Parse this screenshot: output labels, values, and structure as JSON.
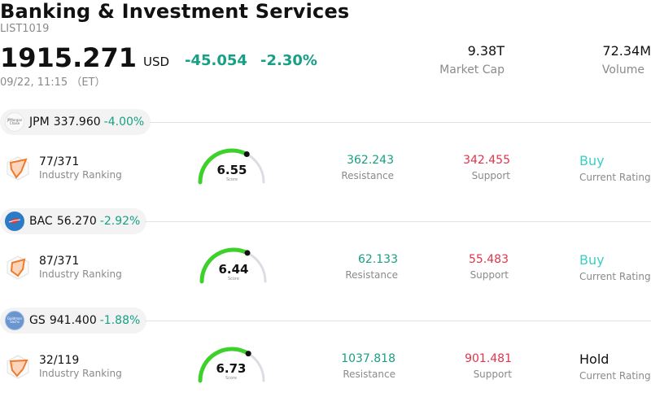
{
  "header": {
    "title": "Banking & Investment Services",
    "code": "LIST1019",
    "price": "1915.271",
    "currency": "USD",
    "change": "-45.054",
    "change_pct": "-2.30%",
    "datetime": "09/22, 11:15 （ET）",
    "market_cap_value": "9.38T",
    "market_cap_label": "Market Cap",
    "volume_value": "72.34M",
    "volume_label": "Volume"
  },
  "colors": {
    "positive_green": "#17a085",
    "negative_red": "#e0344a",
    "buy_teal": "#3ccfc3",
    "gauge_green": "#3ed12c",
    "gauge_gray": "#dcdce4",
    "radar_orange": "#f07a2a"
  },
  "rows": [
    {
      "ticker": "JPM",
      "price": "337.960",
      "change_pct": "-4.00%",
      "logo_text": "JPMorgan Chase",
      "ranking": "77/371",
      "ranking_label": "Industry Ranking",
      "score": "6.55",
      "score_label": "Score",
      "score_value": 6.55,
      "resistance": "362.243",
      "resistance_label": "Resistance",
      "support": "342.455",
      "support_label": "Support",
      "rating": "Buy",
      "rating_label": "Current Rating",
      "logo_icon": "jpmorgan-logo"
    },
    {
      "ticker": "BAC",
      "price": "56.270",
      "change_pct": "-2.92%",
      "ranking": "87/371",
      "ranking_label": "Industry Ranking",
      "score": "6.44",
      "score_label": "Score",
      "score_value": 6.44,
      "resistance": "62.133",
      "resistance_label": "Resistance",
      "support": "55.483",
      "support_label": "Support",
      "rating": "Buy",
      "rating_label": "Current Rating",
      "logo_icon": "bank-of-america-logo"
    },
    {
      "ticker": "GS",
      "price": "941.400",
      "change_pct": "-1.88%",
      "logo_text": "Goldman Sachs",
      "ranking": "32/119",
      "ranking_label": "Industry Ranking",
      "score": "6.73",
      "score_label": "Score",
      "score_value": 6.73,
      "resistance": "1037.818",
      "resistance_label": "Resistance",
      "support": "901.481",
      "support_label": "Support",
      "rating": "Hold",
      "rating_label": "Current Rating",
      "logo_icon": "goldman-sachs-logo"
    }
  ]
}
